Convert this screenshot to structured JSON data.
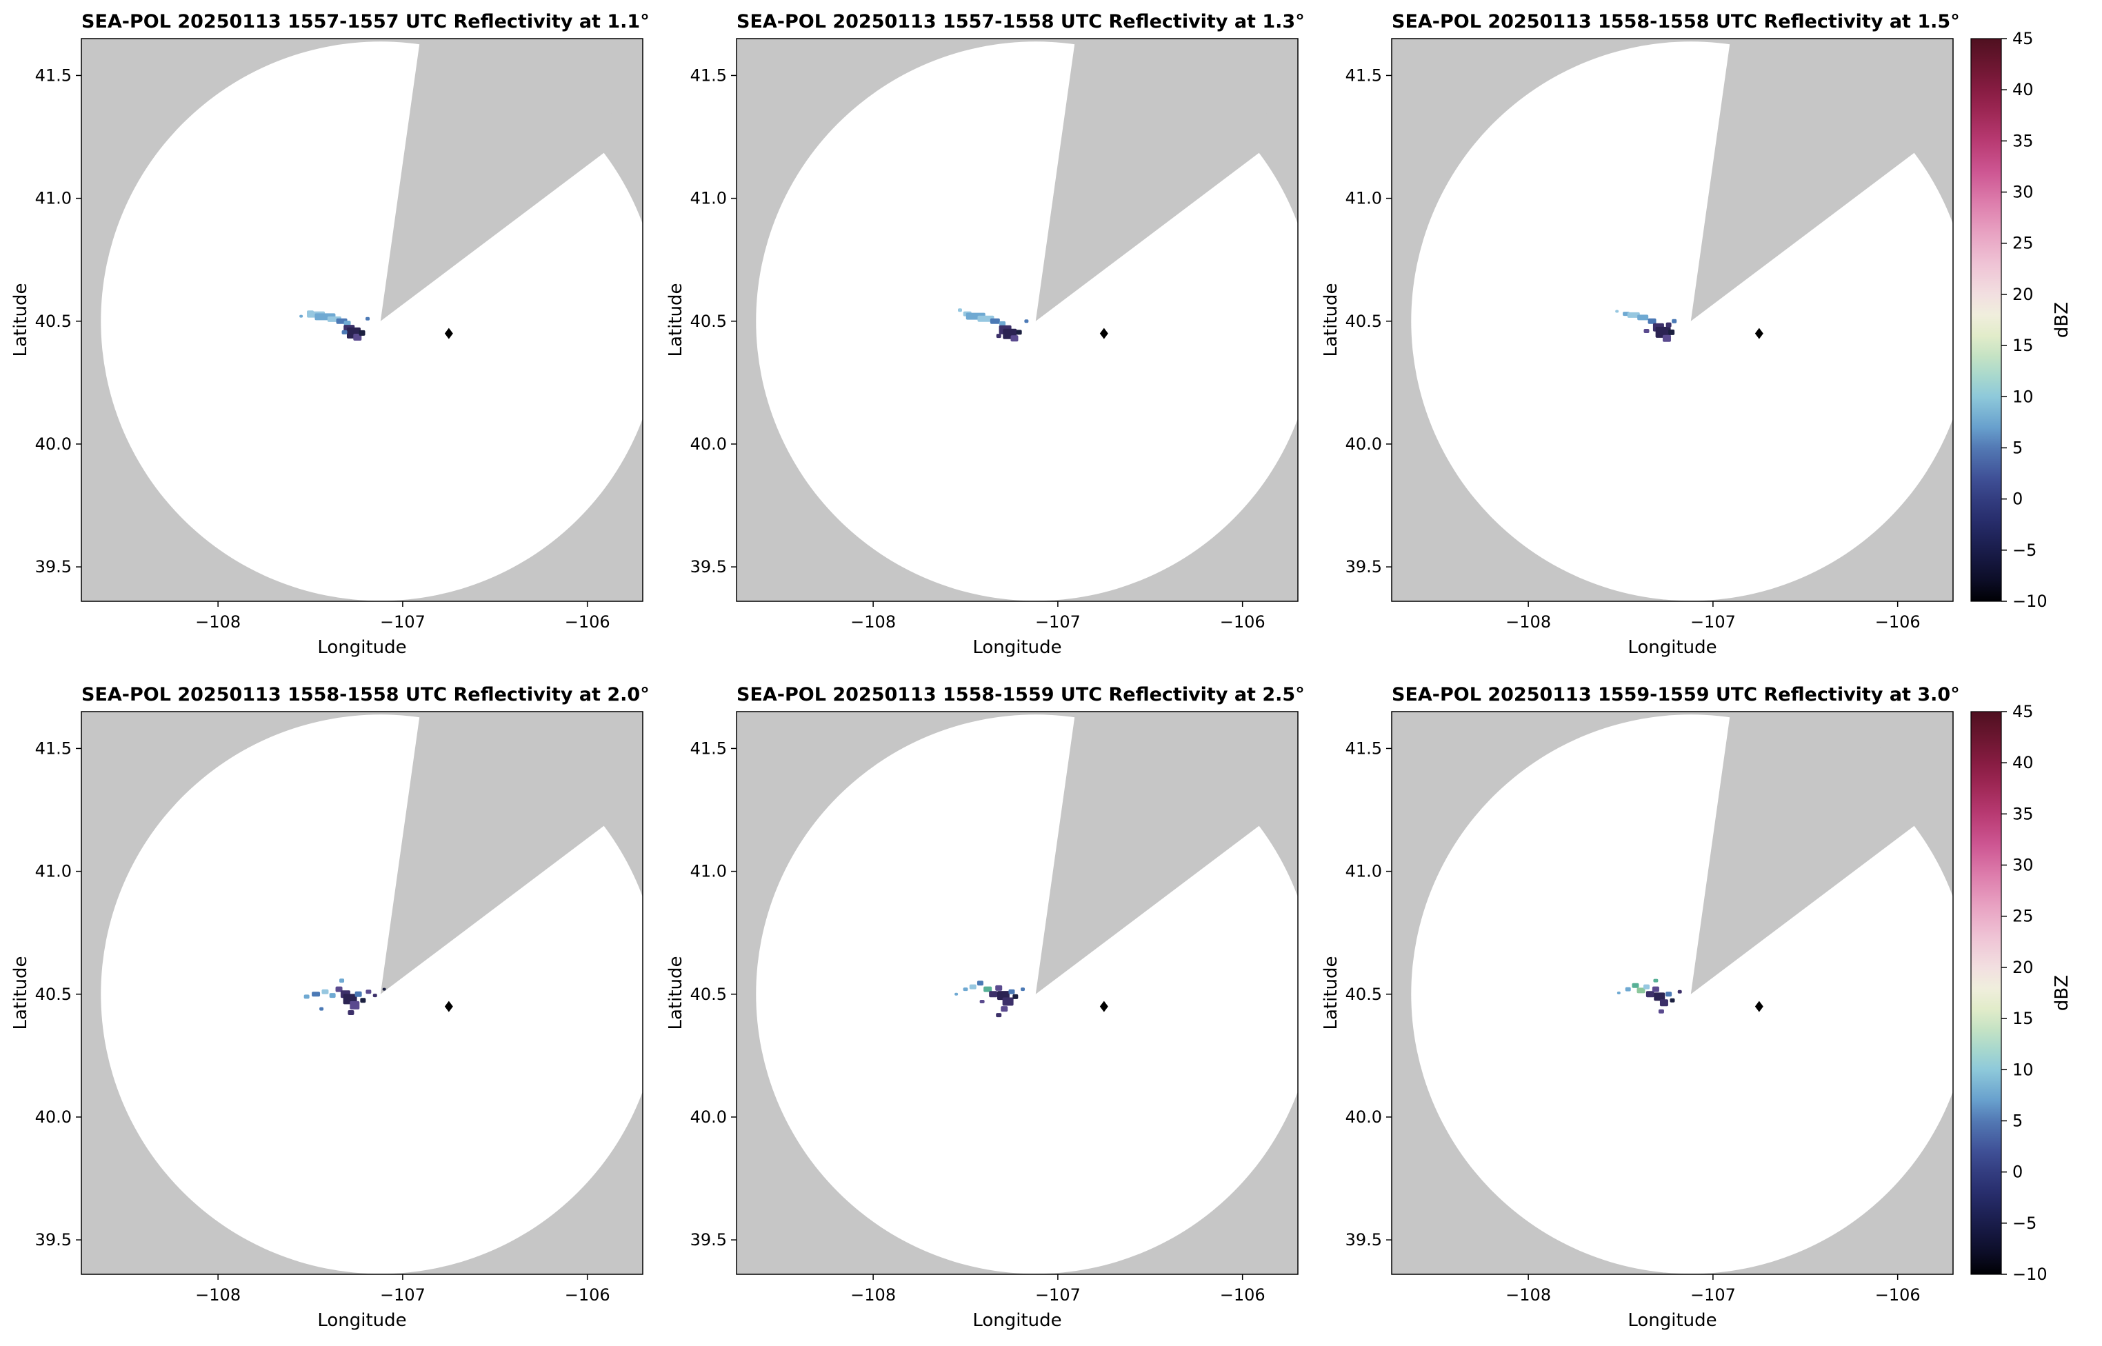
{
  "figure": {
    "background": "#ffffff"
  },
  "chart_data": {
    "type": "heatmap",
    "layout": "2x3 small multiples of radar PPI reflectivity maps with shared colorbar per row",
    "instrument": "SEA-POL",
    "date": "20250113",
    "xlabel": "Longitude",
    "ylabel": "Latitude",
    "xlim": [
      -108.74,
      -105.7
    ],
    "ylim": [
      39.36,
      41.65
    ],
    "xticks": [
      -108,
      -107,
      -106
    ],
    "yticks": [
      39.5,
      40.0,
      40.5,
      41.0,
      41.5
    ],
    "background_gray": "#c6c6c6",
    "radar_coverage": {
      "center_lon": -107.12,
      "center_lat": 40.5,
      "radius_lat_deg": 1.138,
      "missing_sector_az": [
        8,
        53
      ]
    },
    "station_marker": {
      "lon": -106.75,
      "lat": 40.45,
      "color": "#000000",
      "shape": "diamond"
    },
    "colorbar": {
      "label": "dBZ",
      "min": -10,
      "max": 45,
      "ticks": [
        45,
        40,
        35,
        30,
        25,
        20,
        15,
        10,
        5,
        0,
        -5,
        -10
      ],
      "stops": [
        {
          "v": -10,
          "c": "#000004"
        },
        {
          "v": -8,
          "c": "#0c0d26"
        },
        {
          "v": -6,
          "c": "#15173f"
        },
        {
          "v": -4,
          "c": "#1e2256"
        },
        {
          "v": -2,
          "c": "#282e6d"
        },
        {
          "v": 0,
          "c": "#333d80"
        },
        {
          "v": 2,
          "c": "#3f5096"
        },
        {
          "v": 5,
          "c": "#5379b4"
        },
        {
          "v": 7,
          "c": "#68a0cd"
        },
        {
          "v": 10,
          "c": "#8ec9da"
        },
        {
          "v": 12,
          "c": "#a8d8cd"
        },
        {
          "v": 14,
          "c": "#c6e3c4"
        },
        {
          "v": 16,
          "c": "#e2ecca"
        },
        {
          "v": 18,
          "c": "#f0eedd"
        },
        {
          "v": 20,
          "c": "#f2dfe0"
        },
        {
          "v": 23,
          "c": "#efc3d5"
        },
        {
          "v": 26,
          "c": "#e8a2c2"
        },
        {
          "v": 29,
          "c": "#dd7dac"
        },
        {
          "v": 32,
          "c": "#cd5692"
        },
        {
          "v": 35,
          "c": "#b83a72"
        },
        {
          "v": 38,
          "c": "#9c2653"
        },
        {
          "v": 40,
          "c": "#871c42"
        },
        {
          "v": 42,
          "c": "#701733"
        },
        {
          "v": 45,
          "c": "#4f1020"
        }
      ]
    },
    "cells_format": [
      "lon",
      "lat",
      "w_px",
      "h_px",
      "color",
      "dbz_est"
    ],
    "panels": [
      {
        "title": "SEA-POL 20250113 1557-1557 UTC Reflectivity at 1.1°",
        "elevation_deg": 1.1,
        "time_utc": "1557-1557",
        "cells": [
          [
            -107.5,
            40.535,
            10,
            6,
            "#96c7e0",
            7
          ],
          [
            -107.47,
            40.527,
            26,
            9,
            "#96c7e0",
            7
          ],
          [
            -107.42,
            40.518,
            30,
            10,
            "#6fa9d2",
            5
          ],
          [
            -107.37,
            40.508,
            20,
            8,
            "#96c7e0",
            6
          ],
          [
            -107.33,
            40.5,
            16,
            8,
            "#4b79b5",
            3
          ],
          [
            -107.3,
            40.492,
            10,
            7,
            "#6fa9d2",
            5
          ],
          [
            -107.29,
            40.468,
            16,
            12,
            "#3c3069",
            -1
          ],
          [
            -107.265,
            40.452,
            20,
            16,
            "#2b2352",
            -2
          ],
          [
            -107.245,
            40.435,
            12,
            10,
            "#5a4a8e",
            0
          ],
          [
            -107.22,
            40.452,
            9,
            8,
            "#1c2040",
            -4
          ],
          [
            -107.315,
            40.455,
            8,
            6,
            "#4b79b5",
            3
          ],
          [
            -107.19,
            40.51,
            6,
            5,
            "#4b79b5",
            3
          ],
          [
            -107.55,
            40.52,
            5,
            4,
            "#6fa9d2",
            5
          ]
        ]
      },
      {
        "title": "SEA-POL 20250113 1557-1558 UTC Reflectivity at 1.3°",
        "elevation_deg": 1.3,
        "time_utc": "1557-1558",
        "cells": [
          [
            -107.49,
            40.53,
            12,
            7,
            "#96c7e0",
            7
          ],
          [
            -107.445,
            40.52,
            28,
            10,
            "#6fa9d2",
            5
          ],
          [
            -107.39,
            40.51,
            24,
            9,
            "#96c7e0",
            6
          ],
          [
            -107.34,
            40.5,
            14,
            8,
            "#4b79b5",
            3
          ],
          [
            -107.3,
            40.49,
            9,
            7,
            "#6fa9d2",
            5
          ],
          [
            -107.285,
            40.465,
            18,
            13,
            "#3c3069",
            -1
          ],
          [
            -107.26,
            40.448,
            20,
            15,
            "#2b2352",
            -2
          ],
          [
            -107.235,
            40.43,
            11,
            9,
            "#5a4a8e",
            0
          ],
          [
            -107.21,
            40.455,
            8,
            7,
            "#1c2040",
            -4
          ],
          [
            -107.17,
            40.5,
            6,
            5,
            "#4b79b5",
            3
          ],
          [
            -107.53,
            40.545,
            6,
            5,
            "#96c7e0",
            7
          ],
          [
            -107.32,
            40.44,
            7,
            6,
            "#3c3069",
            -1
          ]
        ]
      },
      {
        "title": "SEA-POL 20250113 1558-1558 UTC Reflectivity at 1.5°",
        "elevation_deg": 1.5,
        "time_utc": "1558-1558",
        "cells": [
          [
            -107.47,
            40.53,
            10,
            6,
            "#6fa9d2",
            5
          ],
          [
            -107.43,
            40.525,
            18,
            8,
            "#96c7e0",
            7
          ],
          [
            -107.38,
            40.515,
            16,
            8,
            "#6fa9d2",
            5
          ],
          [
            -107.33,
            40.5,
            12,
            8,
            "#4b79b5",
            3
          ],
          [
            -107.295,
            40.475,
            16,
            12,
            "#3c3069",
            -1
          ],
          [
            -107.27,
            40.455,
            22,
            16,
            "#2b2352",
            -2
          ],
          [
            -107.25,
            40.43,
            12,
            10,
            "#5a4a8e",
            0
          ],
          [
            -107.225,
            40.455,
            9,
            8,
            "#1c2040",
            -4
          ],
          [
            -107.21,
            40.5,
            7,
            6,
            "#4b79b5",
            3
          ],
          [
            -107.36,
            40.46,
            8,
            6,
            "#5a4a8e",
            0
          ],
          [
            -107.52,
            40.54,
            5,
            4,
            "#96c7e0",
            7
          ],
          [
            -107.24,
            40.485,
            8,
            7,
            "#3c3069",
            -1
          ]
        ]
      },
      {
        "title": "SEA-POL 20250113 1558-1558 UTC Reflectivity at 2.0°",
        "elevation_deg": 2.0,
        "time_utc": "1558-1558",
        "cells": [
          [
            -107.52,
            40.49,
            8,
            6,
            "#6fa9d2",
            5
          ],
          [
            -107.47,
            40.5,
            12,
            7,
            "#4b79b5",
            3
          ],
          [
            -107.42,
            40.51,
            10,
            7,
            "#96c7e0",
            7
          ],
          [
            -107.38,
            40.495,
            9,
            7,
            "#6fa9d2",
            5
          ],
          [
            -107.345,
            40.52,
            10,
            8,
            "#5a4a8e",
            0
          ],
          [
            -107.31,
            40.5,
            14,
            11,
            "#3c3069",
            -1
          ],
          [
            -107.285,
            40.48,
            20,
            15,
            "#2b2352",
            -2
          ],
          [
            -107.26,
            40.455,
            14,
            12,
            "#5a4a8e",
            0
          ],
          [
            -107.24,
            40.5,
            10,
            8,
            "#4b79b5",
            3
          ],
          [
            -107.215,
            40.475,
            8,
            7,
            "#1c2040",
            -4
          ],
          [
            -107.185,
            40.51,
            8,
            6,
            "#5a4a8e",
            0
          ],
          [
            -107.15,
            40.495,
            6,
            5,
            "#3c3069",
            -1
          ],
          [
            -107.28,
            40.425,
            9,
            7,
            "#3c3069",
            -1
          ],
          [
            -107.33,
            40.555,
            7,
            6,
            "#6fa9d2",
            5
          ],
          [
            -107.44,
            40.44,
            6,
            5,
            "#4b79b5",
            3
          ],
          [
            -107.1,
            40.52,
            5,
            4,
            "#1c2040",
            -4
          ]
        ]
      },
      {
        "title": "SEA-POL 20250113 1558-1559 UTC Reflectivity at 2.5°",
        "elevation_deg": 2.5,
        "time_utc": "1558-1559",
        "cells": [
          [
            -107.5,
            40.52,
            7,
            5,
            "#6fa9d2",
            5
          ],
          [
            -107.46,
            40.53,
            10,
            7,
            "#96c7e0",
            7
          ],
          [
            -107.42,
            40.545,
            9,
            7,
            "#4b79b5",
            3
          ],
          [
            -107.38,
            40.52,
            12,
            8,
            "#57b096",
            11
          ],
          [
            -107.35,
            40.5,
            12,
            9,
            "#3c3069",
            -1
          ],
          [
            -107.32,
            40.525,
            10,
            8,
            "#5a4a8e",
            0
          ],
          [
            -107.295,
            40.495,
            18,
            13,
            "#2b2352",
            -2
          ],
          [
            -107.27,
            40.47,
            16,
            12,
            "#3c3069",
            -1
          ],
          [
            -107.25,
            40.51,
            9,
            7,
            "#4b79b5",
            3
          ],
          [
            -107.23,
            40.49,
            8,
            7,
            "#1c2040",
            -4
          ],
          [
            -107.29,
            40.44,
            10,
            8,
            "#5a4a8e",
            0
          ],
          [
            -107.32,
            40.415,
            8,
            6,
            "#3c3069",
            -1
          ],
          [
            -107.19,
            40.52,
            6,
            5,
            "#4b79b5",
            3
          ],
          [
            -107.55,
            40.5,
            5,
            4,
            "#6fa9d2",
            5
          ],
          [
            -107.41,
            40.47,
            7,
            5,
            "#5a4a8e",
            0
          ]
        ]
      },
      {
        "title": "SEA-POL 20250113 1559-1559 UTC Reflectivity at 3.0°",
        "elevation_deg": 3.0,
        "time_utc": "1559-1559",
        "cells": [
          [
            -107.46,
            40.52,
            8,
            6,
            "#6fa9d2",
            5
          ],
          [
            -107.42,
            40.535,
            10,
            7,
            "#57b096",
            11
          ],
          [
            -107.39,
            40.515,
            12,
            8,
            "#8cc79c",
            13
          ],
          [
            -107.36,
            40.53,
            9,
            7,
            "#96c7e0",
            7
          ],
          [
            -107.34,
            40.5,
            12,
            9,
            "#3c3069",
            -1
          ],
          [
            -107.31,
            40.52,
            10,
            8,
            "#5a4a8e",
            0
          ],
          [
            -107.29,
            40.49,
            16,
            12,
            "#2b2352",
            -2
          ],
          [
            -107.265,
            40.465,
            12,
            10,
            "#3c3069",
            -1
          ],
          [
            -107.24,
            40.5,
            9,
            7,
            "#4b79b5",
            3
          ],
          [
            -107.22,
            40.475,
            7,
            6,
            "#1c2040",
            -4
          ],
          [
            -107.28,
            40.43,
            8,
            6,
            "#5a4a8e",
            0
          ],
          [
            -107.18,
            40.51,
            6,
            5,
            "#3c3069",
            -1
          ],
          [
            -107.31,
            40.555,
            7,
            5,
            "#57b096",
            11
          ],
          [
            -107.51,
            40.505,
            5,
            4,
            "#6fa9d2",
            5
          ]
        ]
      }
    ]
  }
}
